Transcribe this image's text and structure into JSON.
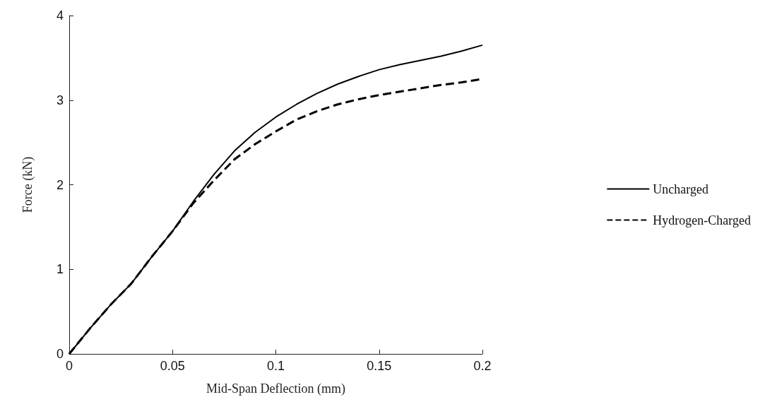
{
  "chart_data": {
    "type": "line",
    "xlabel": "Mid-Span Deflection (mm)",
    "ylabel": "Force (kN)",
    "x": [
      0,
      0.01,
      0.02,
      0.03,
      0.04,
      0.05,
      0.06,
      0.07,
      0.08,
      0.09,
      0.1,
      0.11,
      0.12,
      0.13,
      0.14,
      0.15,
      0.16,
      0.17,
      0.18,
      0.19,
      0.2
    ],
    "series": [
      {
        "name": "Uncharged",
        "color": "#000000",
        "line_style": "solid",
        "values": [
          0,
          0.3,
          0.58,
          0.83,
          1.15,
          1.45,
          1.8,
          2.12,
          2.4,
          2.62,
          2.8,
          2.95,
          3.08,
          3.19,
          3.28,
          3.36,
          3.42,
          3.47,
          3.52,
          3.58,
          3.65
        ]
      },
      {
        "name": "Hydrogen-Charged",
        "color": "#000000",
        "line_style": "dashed",
        "values": [
          0,
          0.3,
          0.58,
          0.83,
          1.15,
          1.45,
          1.78,
          2.05,
          2.3,
          2.48,
          2.63,
          2.77,
          2.87,
          2.95,
          3.01,
          3.06,
          3.1,
          3.14,
          3.18,
          3.21,
          3.25
        ]
      }
    ],
    "xlim": [
      0,
      0.2
    ],
    "xticks": [
      0,
      0.05,
      0.1,
      0.15,
      0.2
    ],
    "ylim": [
      0,
      4
    ],
    "yticks": [
      0,
      1,
      2,
      3,
      4
    ],
    "grid": false,
    "legend": "right",
    "marker": "none"
  }
}
